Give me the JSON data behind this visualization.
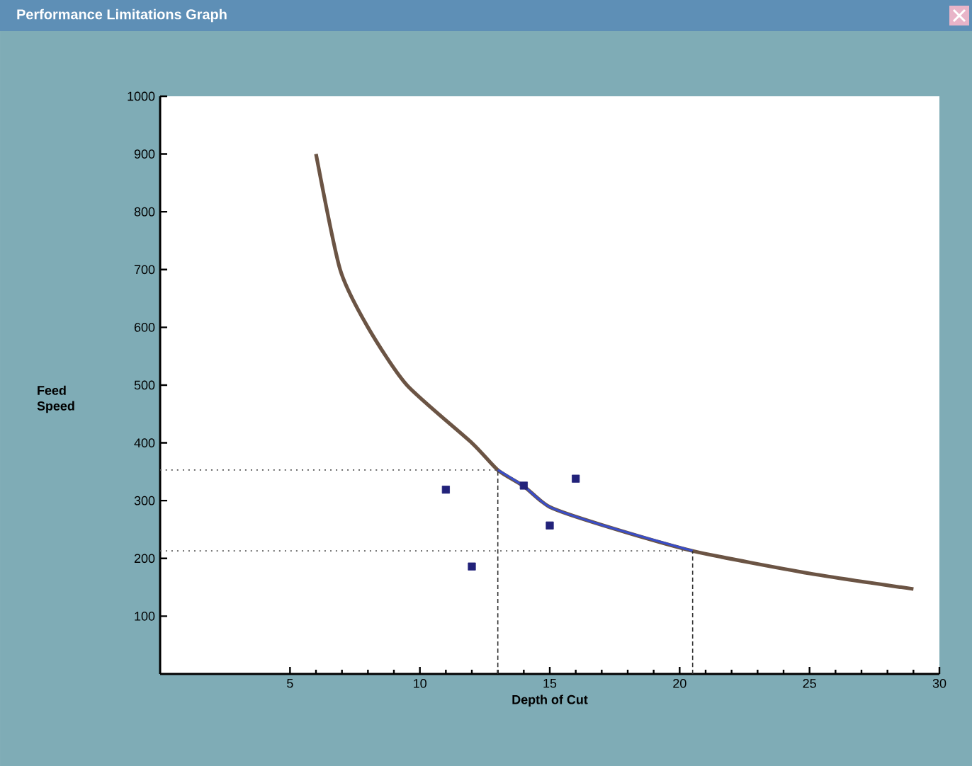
{
  "chart_data": {
    "type": "line",
    "title": "Performance Limitations Graph",
    "xlabel": "Depth of Cut",
    "ylabel": "Feed Speed",
    "xlim": [
      0,
      30
    ],
    "ylim": [
      0,
      1000
    ],
    "xticks": [
      5,
      10,
      15,
      20,
      25,
      30
    ],
    "yticks": [
      100,
      200,
      300,
      400,
      500,
      600,
      700,
      800,
      900,
      1000
    ],
    "grid": false,
    "series": [
      {
        "color": "#6b5444",
        "marker": "none",
        "line_style": "solid",
        "x": [
          6,
          6.93,
          8,
          9.5,
          12,
          13,
          14,
          15,
          17,
          20.5,
          25,
          29
        ],
        "values": [
          900,
          700,
          600,
          500,
          400,
          353,
          325,
          289,
          258,
          213,
          174,
          147
        ]
      },
      {
        "color": "#3a4ec8",
        "marker": "none",
        "line_style": "solid",
        "x": [
          13,
          14,
          15,
          17,
          20.5
        ],
        "values": [
          353,
          325,
          289,
          258,
          213
        ]
      },
      {
        "type": "line",
        "color": "#555555",
        "marker": "none",
        "line_style": "dotted",
        "x": [
          0,
          13
        ],
        "values": [
          353,
          353
        ]
      },
      {
        "type": "line",
        "color": "#555555",
        "marker": "none",
        "line_style": "dotted",
        "x": [
          0,
          20.5
        ],
        "values": [
          213,
          213
        ]
      },
      {
        "type": "line",
        "color": "#333333",
        "marker": "none",
        "line_style": "dashed",
        "x": [
          13,
          13
        ],
        "values": [
          0,
          353
        ]
      },
      {
        "type": "line",
        "color": "#333333",
        "marker": "none",
        "line_style": "dashed",
        "x": [
          20.5,
          20.5
        ],
        "values": [
          0,
          213
        ]
      },
      {
        "type": "scatter",
        "color": "#22227a",
        "marker": "square",
        "x": [
          11,
          12,
          14,
          15,
          16
        ],
        "values": [
          319,
          186,
          326,
          257,
          338
        ]
      }
    ]
  }
}
